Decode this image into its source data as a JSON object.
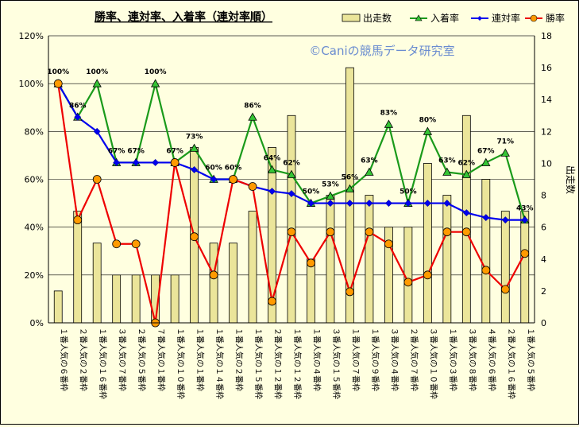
{
  "chart_data": {
    "type": "bar",
    "title": "勝率、連対率、入着率（連対率順）",
    "watermark": "©Caniの競馬データ研究室",
    "ylabel_right": "出走数",
    "left_axis": {
      "min": 0,
      "max": 120,
      "step": 20,
      "ticks": [
        "0%",
        "20%",
        "40%",
        "60%",
        "80%",
        "100%",
        "120%"
      ]
    },
    "right_axis": {
      "min": 0,
      "max": 18,
      "step": 2,
      "ticks": [
        "0",
        "2",
        "4",
        "6",
        "8",
        "10",
        "12",
        "14",
        "16",
        "18"
      ]
    },
    "legend": {
      "position": "top",
      "entries": [
        "出走数",
        "入着率",
        "連対率",
        "勝率"
      ]
    },
    "categories": [
      "１番人気の６番枠",
      "２番人気の２番枠",
      "１番人気の１６番枠",
      "３番人気の７番枠",
      "２番人気の５番枠",
      "７番人気の１番枠",
      "１番人気の１０番枠",
      "１番人気の１番枠",
      "１番人気の１４番枠",
      "１番人気の２番枠",
      "１番人気の１５番枠",
      "２番人気の１２番枠",
      "１番人気の１２番枠",
      "１番人気の４番枠",
      "３番人気の１５番枠",
      "１番人気の７番枠",
      "１番人気の９番枠",
      "３番人気の４番枠",
      "２番人気の７番枠",
      "３番人気の１０番枠",
      "１番人気の３番枠",
      "３番人気の８番枠",
      "４番人気の６番枠",
      "２番人気の１６番枠",
      "１番人気の５番枠"
    ],
    "series": [
      {
        "name": "出走数",
        "type": "bar",
        "axis": "right",
        "color": "#ebe59a",
        "values": [
          2,
          7,
          5,
          3,
          3,
          3,
          3,
          11,
          5,
          5,
          7,
          11,
          13,
          4,
          8,
          16,
          8,
          6,
          6,
          10,
          8,
          13,
          9,
          7,
          7
        ]
      },
      {
        "name": "入着率",
        "type": "line",
        "axis": "left",
        "color": "#1a9a1a",
        "values": [
          100,
          86,
          100,
          67,
          67,
          100,
          67,
          73,
          60,
          60,
          86,
          64,
          62,
          50,
          53,
          56,
          63,
          83,
          50,
          80,
          63,
          62,
          67,
          71,
          43
        ]
      },
      {
        "name": "連対率",
        "type": "line",
        "axis": "left",
        "color": "#0000ee",
        "values": [
          100,
          86,
          80,
          67,
          67,
          67,
          67,
          64,
          60,
          60,
          57,
          55,
          54,
          50,
          50,
          50,
          50,
          50,
          50,
          50,
          50,
          46,
          44,
          43,
          43
        ]
      },
      {
        "name": "勝率",
        "type": "line",
        "axis": "left",
        "color": "#ee0000",
        "values": [
          100,
          43,
          60,
          33,
          33,
          0,
          67,
          36,
          20,
          60,
          57,
          9,
          38,
          25,
          38,
          13,
          38,
          33,
          17,
          20,
          38,
          38,
          22,
          14,
          29
        ]
      }
    ],
    "data_labels": {
      "series": "入着率",
      "labels": [
        "100%",
        "86%",
        "100%",
        "67%",
        "67%",
        "100%",
        "67%",
        "73%",
        "60%",
        "60%",
        "86%",
        "64%",
        "62%",
        "50%",
        "53%",
        "56%",
        "63%",
        "83%",
        "50%",
        "80%",
        "63%",
        "62%",
        "67%",
        "71%",
        "43%"
      ]
    },
    "grid": true
  }
}
